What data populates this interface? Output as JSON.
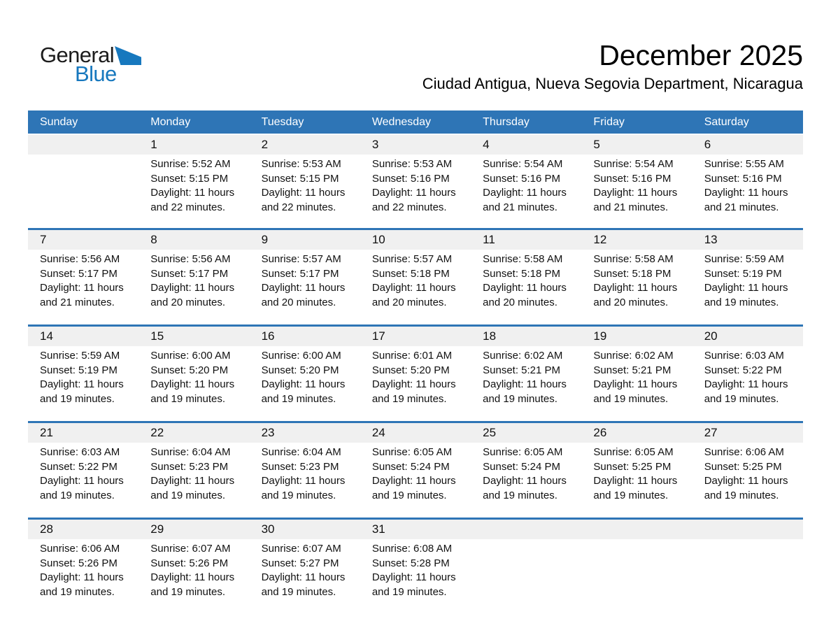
{
  "logo": {
    "text_dark": "General",
    "text_blue": "Blue"
  },
  "title": "December 2025",
  "subtitle": "Ciudad Antigua, Nueva Segovia Department, Nicaragua",
  "colors": {
    "accent": "#2E75B6",
    "band_gray": "#F0F0F0",
    "logo_blue": "#1778BE",
    "header_text": "#FFFFFF"
  },
  "weekday_headers": [
    "Sunday",
    "Monday",
    "Tuesday",
    "Wednesday",
    "Thursday",
    "Friday",
    "Saturday"
  ],
  "weeks": [
    [
      null,
      {
        "day": "1",
        "lines": [
          "Sunrise: 5:52 AM",
          "Sunset: 5:15 PM",
          "Daylight: 11 hours",
          "and 22 minutes."
        ]
      },
      {
        "day": "2",
        "lines": [
          "Sunrise: 5:53 AM",
          "Sunset: 5:15 PM",
          "Daylight: 11 hours",
          "and 22 minutes."
        ]
      },
      {
        "day": "3",
        "lines": [
          "Sunrise: 5:53 AM",
          "Sunset: 5:16 PM",
          "Daylight: 11 hours",
          "and 22 minutes."
        ]
      },
      {
        "day": "4",
        "lines": [
          "Sunrise: 5:54 AM",
          "Sunset: 5:16 PM",
          "Daylight: 11 hours",
          "and 21 minutes."
        ]
      },
      {
        "day": "5",
        "lines": [
          "Sunrise: 5:54 AM",
          "Sunset: 5:16 PM",
          "Daylight: 11 hours",
          "and 21 minutes."
        ]
      },
      {
        "day": "6",
        "lines": [
          "Sunrise: 5:55 AM",
          "Sunset: 5:16 PM",
          "Daylight: 11 hours",
          "and 21 minutes."
        ]
      }
    ],
    [
      {
        "day": "7",
        "lines": [
          "Sunrise: 5:56 AM",
          "Sunset: 5:17 PM",
          "Daylight: 11 hours",
          "and 21 minutes."
        ]
      },
      {
        "day": "8",
        "lines": [
          "Sunrise: 5:56 AM",
          "Sunset: 5:17 PM",
          "Daylight: 11 hours",
          "and 20 minutes."
        ]
      },
      {
        "day": "9",
        "lines": [
          "Sunrise: 5:57 AM",
          "Sunset: 5:17 PM",
          "Daylight: 11 hours",
          "and 20 minutes."
        ]
      },
      {
        "day": "10",
        "lines": [
          "Sunrise: 5:57 AM",
          "Sunset: 5:18 PM",
          "Daylight: 11 hours",
          "and 20 minutes."
        ]
      },
      {
        "day": "11",
        "lines": [
          "Sunrise: 5:58 AM",
          "Sunset: 5:18 PM",
          "Daylight: 11 hours",
          "and 20 minutes."
        ]
      },
      {
        "day": "12",
        "lines": [
          "Sunrise: 5:58 AM",
          "Sunset: 5:18 PM",
          "Daylight: 11 hours",
          "and 20 minutes."
        ]
      },
      {
        "day": "13",
        "lines": [
          "Sunrise: 5:59 AM",
          "Sunset: 5:19 PM",
          "Daylight: 11 hours",
          "and 19 minutes."
        ]
      }
    ],
    [
      {
        "day": "14",
        "lines": [
          "Sunrise: 5:59 AM",
          "Sunset: 5:19 PM",
          "Daylight: 11 hours",
          "and 19 minutes."
        ]
      },
      {
        "day": "15",
        "lines": [
          "Sunrise: 6:00 AM",
          "Sunset: 5:20 PM",
          "Daylight: 11 hours",
          "and 19 minutes."
        ]
      },
      {
        "day": "16",
        "lines": [
          "Sunrise: 6:00 AM",
          "Sunset: 5:20 PM",
          "Daylight: 11 hours",
          "and 19 minutes."
        ]
      },
      {
        "day": "17",
        "lines": [
          "Sunrise: 6:01 AM",
          "Sunset: 5:20 PM",
          "Daylight: 11 hours",
          "and 19 minutes."
        ]
      },
      {
        "day": "18",
        "lines": [
          "Sunrise: 6:02 AM",
          "Sunset: 5:21 PM",
          "Daylight: 11 hours",
          "and 19 minutes."
        ]
      },
      {
        "day": "19",
        "lines": [
          "Sunrise: 6:02 AM",
          "Sunset: 5:21 PM",
          "Daylight: 11 hours",
          "and 19 minutes."
        ]
      },
      {
        "day": "20",
        "lines": [
          "Sunrise: 6:03 AM",
          "Sunset: 5:22 PM",
          "Daylight: 11 hours",
          "and 19 minutes."
        ]
      }
    ],
    [
      {
        "day": "21",
        "lines": [
          "Sunrise: 6:03 AM",
          "Sunset: 5:22 PM",
          "Daylight: 11 hours",
          "and 19 minutes."
        ]
      },
      {
        "day": "22",
        "lines": [
          "Sunrise: 6:04 AM",
          "Sunset: 5:23 PM",
          "Daylight: 11 hours",
          "and 19 minutes."
        ]
      },
      {
        "day": "23",
        "lines": [
          "Sunrise: 6:04 AM",
          "Sunset: 5:23 PM",
          "Daylight: 11 hours",
          "and 19 minutes."
        ]
      },
      {
        "day": "24",
        "lines": [
          "Sunrise: 6:05 AM",
          "Sunset: 5:24 PM",
          "Daylight: 11 hours",
          "and 19 minutes."
        ]
      },
      {
        "day": "25",
        "lines": [
          "Sunrise: 6:05 AM",
          "Sunset: 5:24 PM",
          "Daylight: 11 hours",
          "and 19 minutes."
        ]
      },
      {
        "day": "26",
        "lines": [
          "Sunrise: 6:05 AM",
          "Sunset: 5:25 PM",
          "Daylight: 11 hours",
          "and 19 minutes."
        ]
      },
      {
        "day": "27",
        "lines": [
          "Sunrise: 6:06 AM",
          "Sunset: 5:25 PM",
          "Daylight: 11 hours",
          "and 19 minutes."
        ]
      }
    ],
    [
      {
        "day": "28",
        "lines": [
          "Sunrise: 6:06 AM",
          "Sunset: 5:26 PM",
          "Daylight: 11 hours",
          "and 19 minutes."
        ]
      },
      {
        "day": "29",
        "lines": [
          "Sunrise: 6:07 AM",
          "Sunset: 5:26 PM",
          "Daylight: 11 hours",
          "and 19 minutes."
        ]
      },
      {
        "day": "30",
        "lines": [
          "Sunrise: 6:07 AM",
          "Sunset: 5:27 PM",
          "Daylight: 11 hours",
          "and 19 minutes."
        ]
      },
      {
        "day": "31",
        "lines": [
          "Sunrise: 6:08 AM",
          "Sunset: 5:28 PM",
          "Daylight: 11 hours",
          "and 19 minutes."
        ]
      },
      null,
      null,
      null
    ]
  ]
}
